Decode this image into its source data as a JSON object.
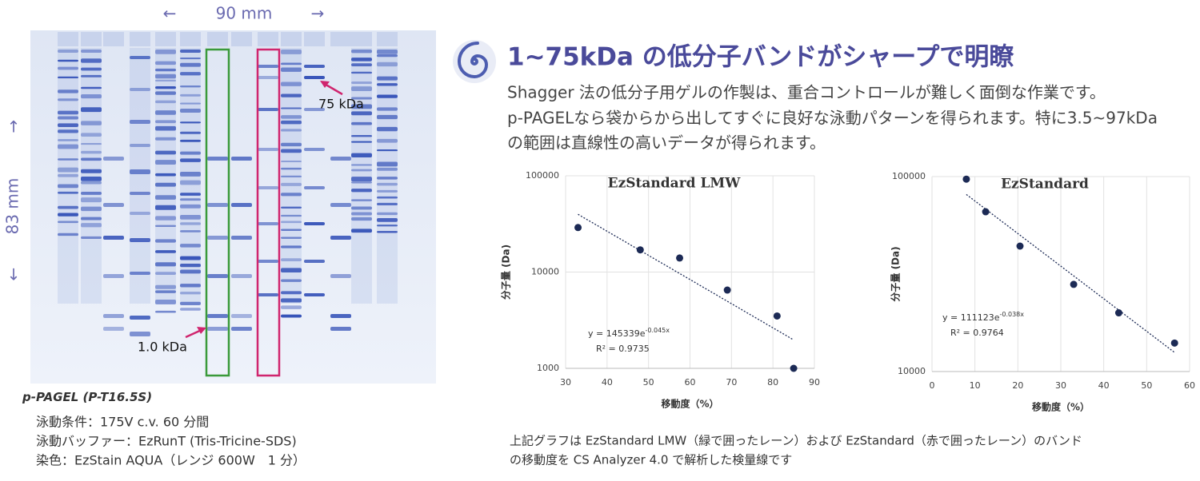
{
  "gel": {
    "width_label": "90 mm",
    "height_label": "83 mm",
    "upper_marker": "75 kDa",
    "lower_marker": "1.0 kDa"
  },
  "heading": "1~75kDa の低分子バンドがシャープで明瞭",
  "body": [
    "Shagger 法の低分子用ゲルの作製は、重合コントロールが難しく面倒な作業です。",
    "p-PAGELなら袋からから出してすぐに良好な泳動パターンを得られます。特に3.5~97kDa",
    "の範囲は直線性の高いデータが得られます。"
  ],
  "caption": {
    "product": "p-PAGEL",
    "code": "(P-T16.5S)",
    "lines": [
      "泳動条件：175V c.v. 60 分間",
      "泳動バッファー：EzRunT (Tris-Tricine-SDS)",
      "染色：EzStain AQUA（レンジ 600W　1 分）"
    ]
  },
  "note": [
    "上記グラフは EzStandard LMW（緑で囲ったレーン）および EzStandard（赤で囲ったレーン）のバンド",
    "の移動度を CS Analyzer 4.0 で解析した検量線です"
  ],
  "chart_data": [
    {
      "type": "scatter",
      "title": "EzStandard LMW",
      "xlabel": "移動度（%）",
      "ylabel": "分子量 (Da)",
      "x": [
        33,
        48,
        57.5,
        69,
        81,
        85
      ],
      "values": [
        29000,
        17000,
        14000,
        6500,
        3500,
        1000
      ],
      "xlim": [
        30,
        90
      ],
      "ylim": [
        1000,
        100000
      ],
      "xticks": [
        30,
        40,
        50,
        60,
        70,
        80,
        90
      ],
      "yticks": [
        1000,
        10000,
        100000
      ],
      "log_y": true,
      "grid": true,
      "color": "#1c2a55",
      "trendline": true,
      "equation": "y = 145339e",
      "equation_exponent": "-0.045x",
      "r2": "R² = 0.9735"
    },
    {
      "type": "scatter",
      "title": "EzStandard",
      "xlabel": "移動度（%）",
      "ylabel": "分子量 (Da)",
      "x": [
        8,
        12.5,
        20.5,
        33,
        43.5,
        56.5
      ],
      "values": [
        97000,
        66000,
        44000,
        28000,
        20000,
        14000
      ],
      "xlim": [
        0,
        60
      ],
      "ylim": [
        10000,
        100000
      ],
      "xticks": [
        0,
        10,
        20,
        30,
        40,
        50,
        60
      ],
      "yticks": [
        10000,
        100000
      ],
      "log_y": true,
      "grid": true,
      "color": "#1c2a55",
      "trendline": true,
      "equation": "y = 111123e",
      "equation_exponent": "-0.038x",
      "r2": "R² = 0.9764"
    }
  ]
}
